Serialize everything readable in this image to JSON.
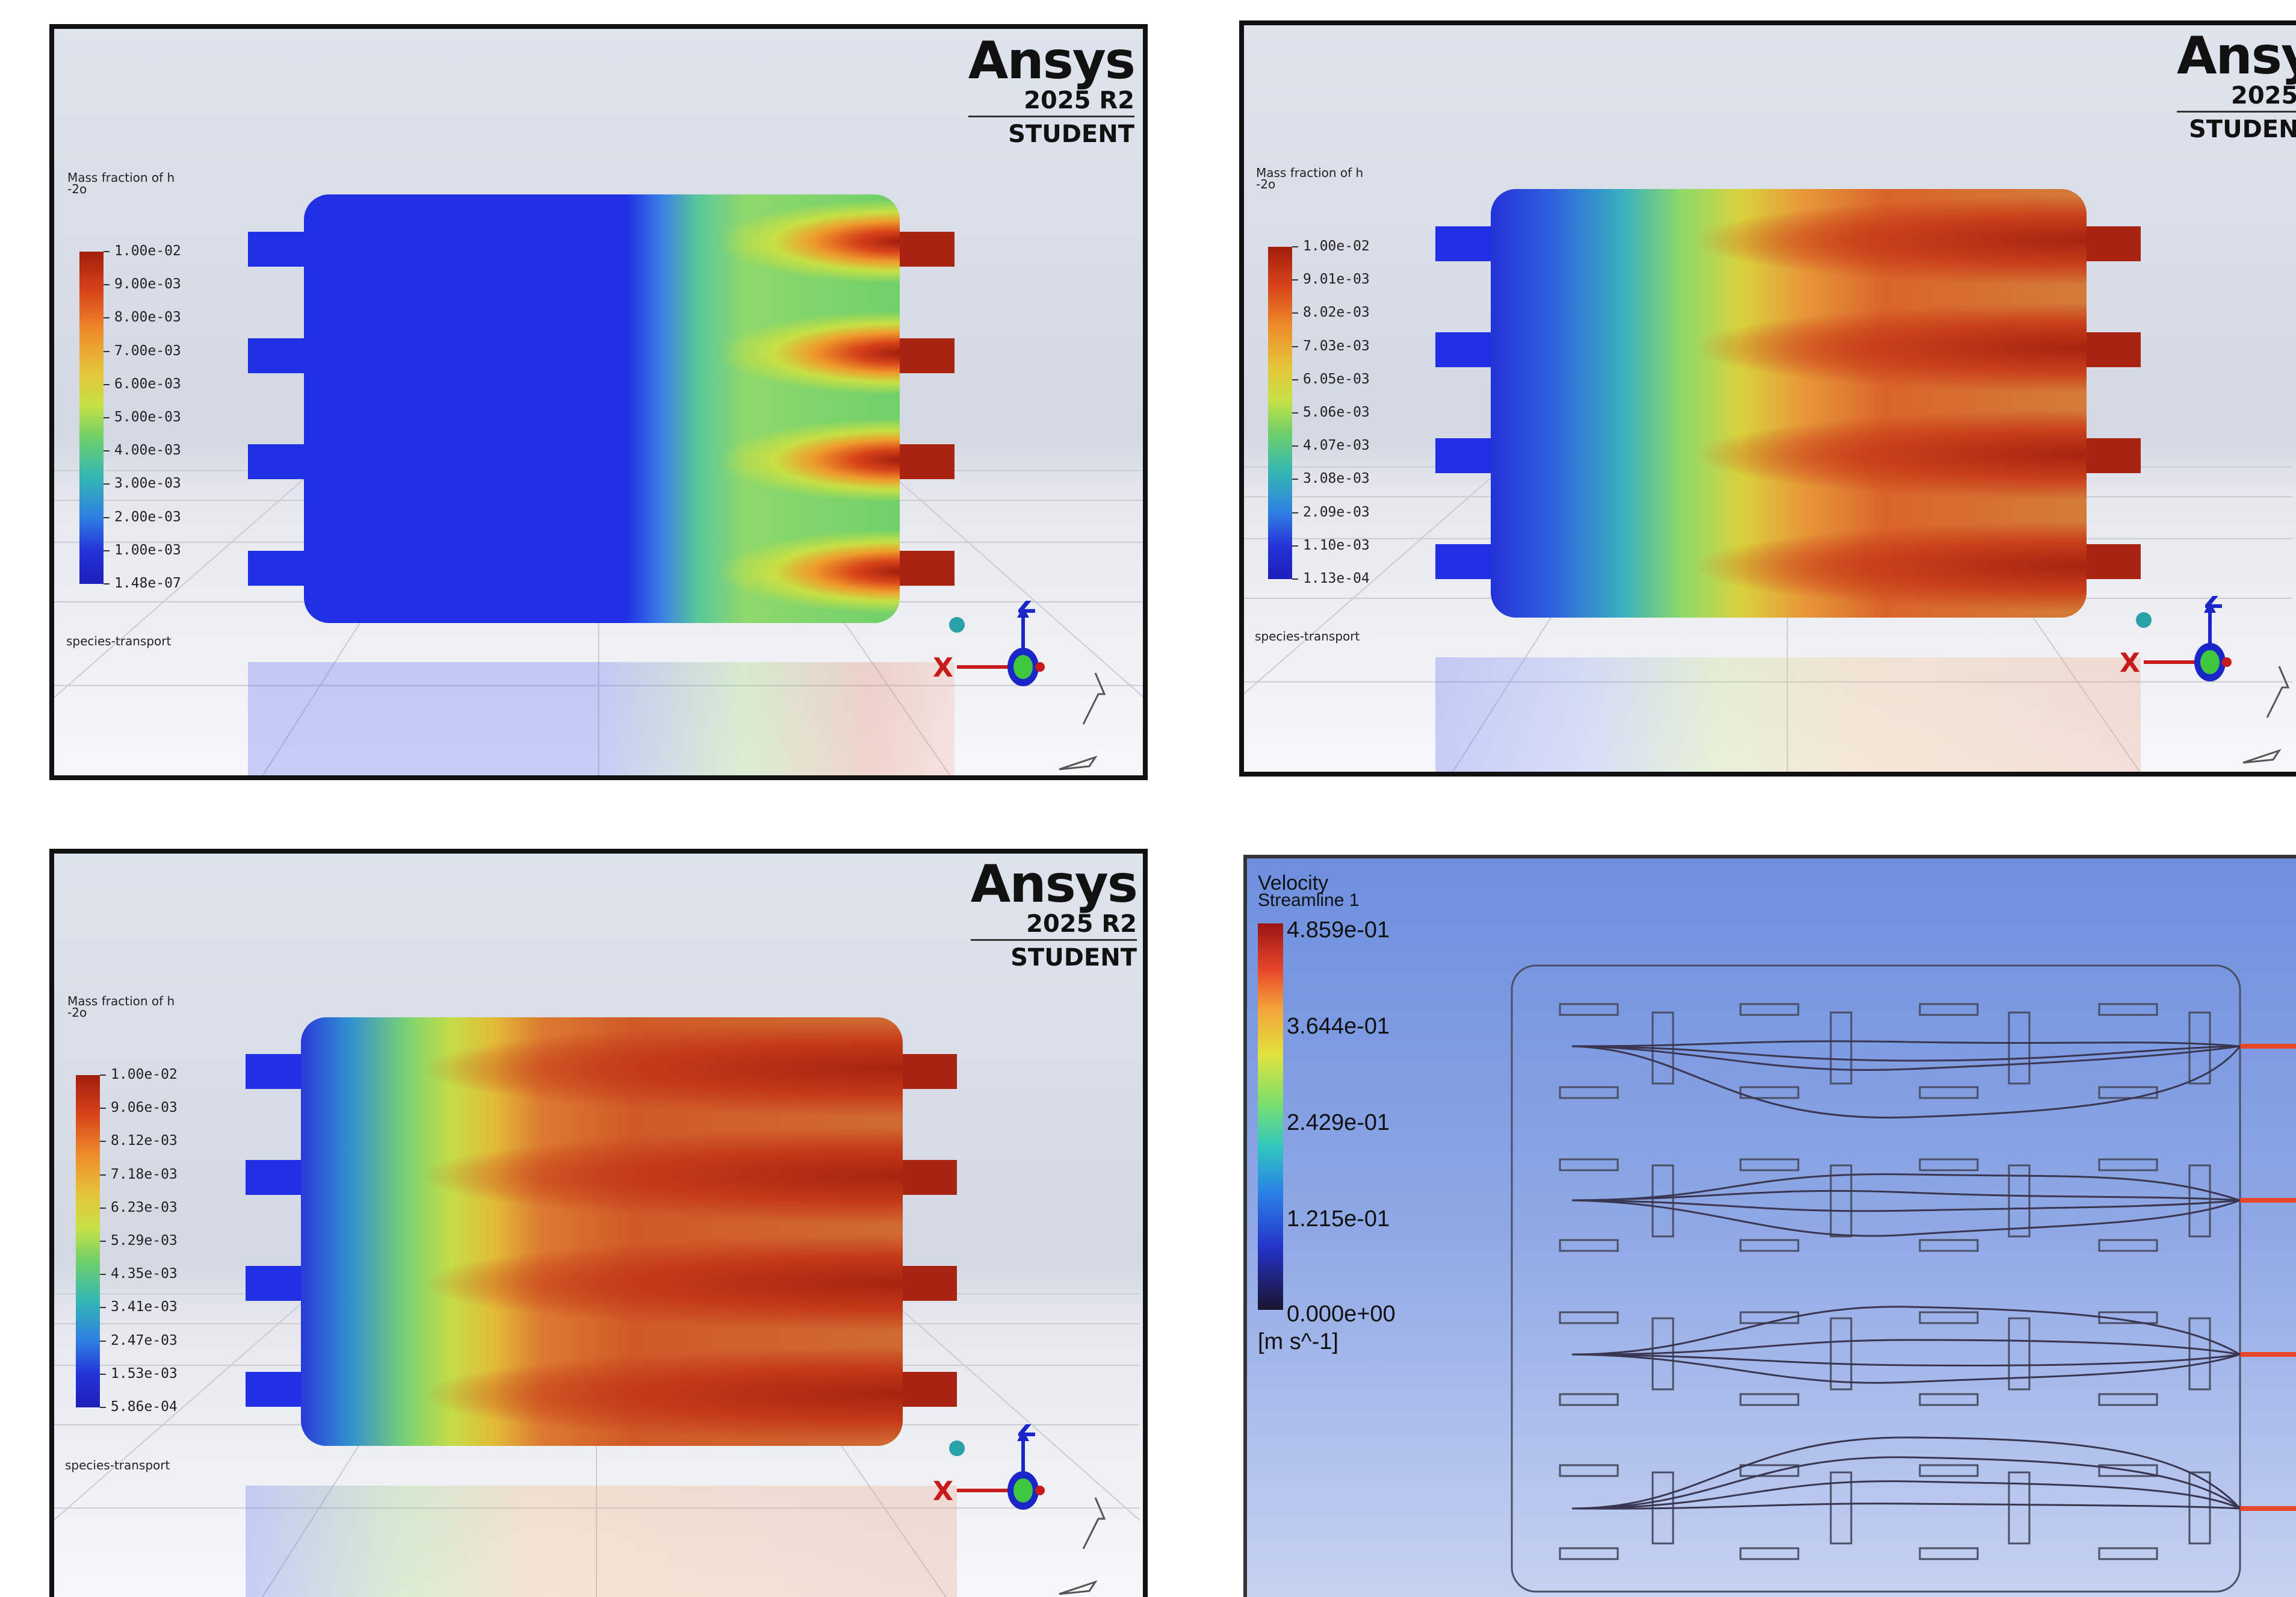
{
  "logo": {
    "brand": "Ansys",
    "version": "2025 R2",
    "edition": "STUDENT"
  },
  "panels": [
    {
      "colorbar_title_line1": "Mass fraction of h",
      "colorbar_title_line2": "-2o",
      "ticks": [
        "1.00e-02",
        "9.00e-03",
        "8.00e-03",
        "7.00e-03",
        "6.00e-03",
        "5.00e-03",
        "4.00e-03",
        "3.00e-03",
        "2.00e-03",
        "1.00e-03",
        "1.48e-07"
      ],
      "zone_label": "species-transport"
    },
    {
      "colorbar_title_line1": "Mass fraction of h",
      "colorbar_title_line2": "-2o",
      "ticks": [
        "1.00e-02",
        "9.01e-03",
        "8.02e-03",
        "7.03e-03",
        "6.05e-03",
        "5.06e-03",
        "4.07e-03",
        "3.08e-03",
        "2.09e-03",
        "1.10e-03",
        "1.13e-04"
      ],
      "zone_label": "species-transport"
    },
    {
      "colorbar_title_line1": "Mass fraction of h",
      "colorbar_title_line2": "-2o",
      "ticks": [
        "1.00e-02",
        "9.06e-03",
        "8.12e-03",
        "7.18e-03",
        "6.23e-03",
        "5.29e-03",
        "4.35e-03",
        "3.41e-03",
        "2.47e-03",
        "1.53e-03",
        "5.86e-04"
      ],
      "zone_label": "species-transport"
    }
  ],
  "axis_labels": {
    "z": "Z",
    "x": "X"
  },
  "velocity": {
    "title": "Velocity",
    "subtitle": "Streamline 1",
    "ticks": [
      "4.859e-01",
      "3.644e-01",
      "2.429e-01",
      "1.215e-01",
      "0.000e+00"
    ],
    "unit": "[m s^-1]"
  }
}
